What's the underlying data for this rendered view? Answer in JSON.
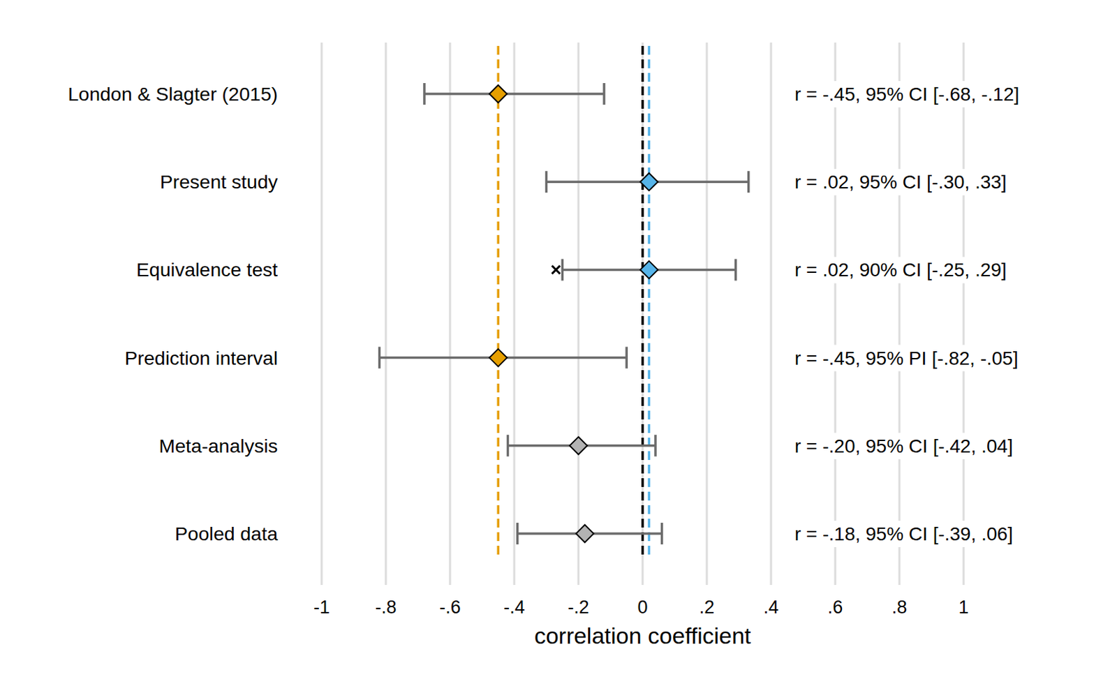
{
  "chart_data": {
    "type": "forest",
    "categories": [
      "London & Slagter (2015)",
      "Present study",
      "Equivalence test",
      "Prediction interval",
      "Meta-analysis",
      "Pooled data"
    ],
    "values": [
      -0.45,
      0.02,
      0.02,
      -0.45,
      -0.2,
      -0.18
    ],
    "ci_lower": [
      -0.68,
      -0.3,
      -0.25,
      -0.82,
      -0.42,
      -0.39
    ],
    "ci_upper": [
      -0.12,
      0.33,
      0.29,
      -0.05,
      0.04,
      0.06
    ],
    "bound_markers": [
      null,
      null,
      -0.27,
      null,
      null,
      null
    ],
    "colors": [
      "#e69f00",
      "#56b4e9",
      "#56b4e9",
      "#e69f00",
      "#b3b3b3",
      "#b3b3b3"
    ],
    "annotations": [
      "r = -.45, 95% CI [-.68, -.12]",
      "r = .02, 95% CI [-.30, .33]",
      "r = .02, 90% CI [-.25, .29]",
      "r = -.45, 95% PI [-.82, -.05]",
      "r = -.20, 95% CI [-.42, .04]",
      "r = -.18, 95% CI [-.39, .06]"
    ],
    "reference_lines": [
      {
        "value": -0.45,
        "color": "#e69f00"
      },
      {
        "value": 0,
        "color": "#000000"
      },
      {
        "value": 0.02,
        "color": "#56b4e9"
      }
    ],
    "x_label": "correlation coefficient",
    "xlim": [
      -1,
      1
    ],
    "xticks": [
      -1,
      {
        "value": -0.8,
        "label": "-.8"
      },
      {
        "value": -0.6,
        "label": "-.6"
      },
      {
        "value": -0.4,
        "label": "-.4"
      },
      {
        "value": -0.2,
        "label": "-.2"
      },
      0,
      {
        "value": 0.2,
        "label": ".2"
      },
      {
        "value": 0.4,
        "label": ".4"
      },
      {
        "value": 0.6,
        "label": ".6"
      },
      {
        "value": 0.8,
        "label": ".8"
      },
      1
    ],
    "grid": true
  }
}
